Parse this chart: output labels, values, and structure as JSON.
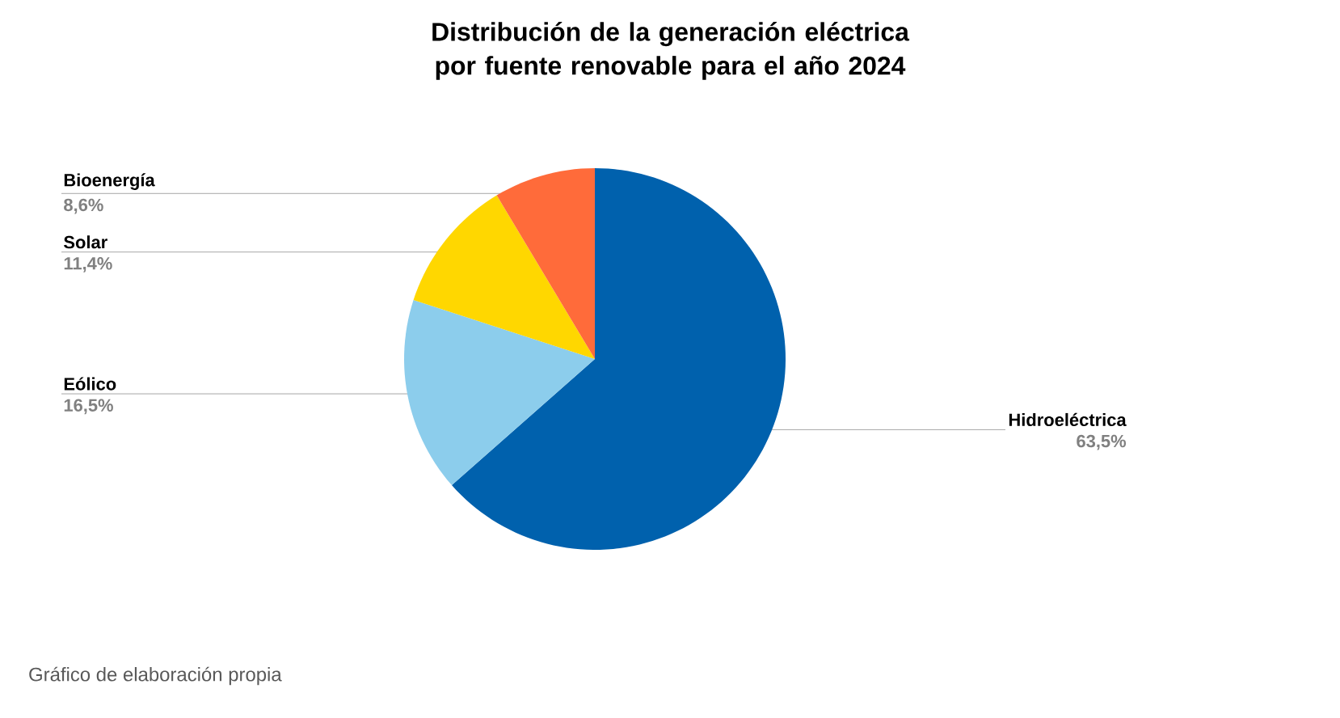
{
  "chart_data": {
    "type": "pie",
    "title": "Distribución de la generación eléctrica por fuente renovable para el año 2024",
    "categories": [
      "Hidroeléctrica",
      "Eólico",
      "Solar",
      "Bioenergía"
    ],
    "values": [
      63.5,
      16.5,
      11.4,
      8.6
    ],
    "value_labels": [
      "63,5%",
      "16,5%",
      "11,4%",
      "8,6%"
    ],
    "colors": [
      "#0061ad",
      "#8ccdec",
      "#ffd700",
      "#ff6b3a"
    ],
    "annotations": [
      "Gráfico de elaboración propia"
    ]
  }
}
